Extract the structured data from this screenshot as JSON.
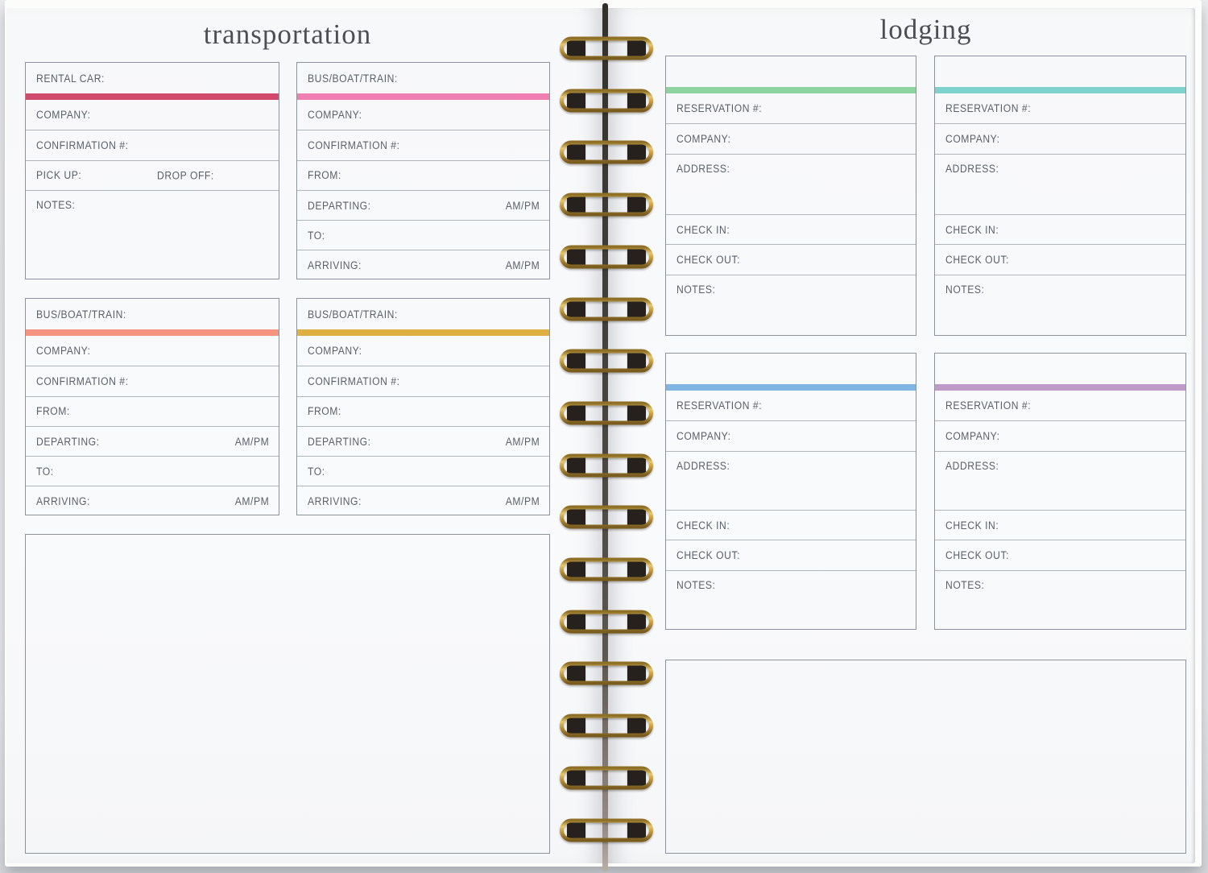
{
  "left_page": {
    "title": "transportation",
    "boxes": [
      {
        "header": "RENTAL CAR:",
        "bar_color": "#d14b6d",
        "rows": [
          {
            "label": "COMPANY:"
          },
          {
            "label": "CONFIRMATION #:"
          },
          {
            "label": "PICK UP:",
            "mid_label": "DROP OFF:"
          },
          {
            "label": "NOTES:",
            "tall": true
          }
        ]
      },
      {
        "header": "BUS/BOAT/TRAIN:",
        "bar_color": "#ef7fb1",
        "rows": [
          {
            "label": "COMPANY:"
          },
          {
            "label": "CONFIRMATION #:"
          },
          {
            "label": "FROM:"
          },
          {
            "label": "DEPARTING:",
            "right_label": "AM/PM"
          },
          {
            "label": "TO:"
          },
          {
            "label": "ARRIVING:",
            "right_label": "AM/PM"
          }
        ]
      },
      {
        "header": "BUS/BOAT/TRAIN:",
        "bar_color": "#f4947e",
        "rows": [
          {
            "label": "COMPANY:"
          },
          {
            "label": "CONFIRMATION #:"
          },
          {
            "label": "FROM:"
          },
          {
            "label": "DEPARTING:",
            "right_label": "AM/PM"
          },
          {
            "label": "TO:"
          },
          {
            "label": "ARRIVING:",
            "right_label": "AM/PM"
          }
        ]
      },
      {
        "header": "BUS/BOAT/TRAIN:",
        "bar_color": "#deb041",
        "rows": [
          {
            "label": "COMPANY:"
          },
          {
            "label": "CONFIRMATION #:"
          },
          {
            "label": "FROM:"
          },
          {
            "label": "DEPARTING:",
            "right_label": "AM/PM"
          },
          {
            "label": "TO:"
          },
          {
            "label": "ARRIVING:",
            "right_label": "AM/PM"
          }
        ]
      }
    ]
  },
  "right_page": {
    "title": "lodging",
    "boxes": [
      {
        "header": "",
        "bar_color": "#8fd2a1",
        "rows": [
          {
            "label": "RESERVATION #:"
          },
          {
            "label": "COMPANY:"
          },
          {
            "label": "ADDRESS:",
            "tall": true
          },
          {
            "label": "CHECK IN:"
          },
          {
            "label": "CHECK OUT:"
          },
          {
            "label": "NOTES:",
            "tall": true
          }
        ]
      },
      {
        "header": "",
        "bar_color": "#7fd1cc",
        "rows": [
          {
            "label": "RESERVATION #:"
          },
          {
            "label": "COMPANY:"
          },
          {
            "label": "ADDRESS:",
            "tall": true
          },
          {
            "label": "CHECK IN:"
          },
          {
            "label": "CHECK OUT:"
          },
          {
            "label": "NOTES:",
            "tall": true
          }
        ]
      },
      {
        "header": "",
        "bar_color": "#80b5e3",
        "rows": [
          {
            "label": "RESERVATION #:"
          },
          {
            "label": "COMPANY:"
          },
          {
            "label": "ADDRESS:",
            "tall": true
          },
          {
            "label": "CHECK IN:"
          },
          {
            "label": "CHECK OUT:"
          },
          {
            "label": "NOTES:",
            "tall": true
          }
        ]
      },
      {
        "header": "",
        "bar_color": "#c09ac6",
        "rows": [
          {
            "label": "RESERVATION #:"
          },
          {
            "label": "COMPANY:"
          },
          {
            "label": "ADDRESS:",
            "tall": true
          },
          {
            "label": "CHECK IN:"
          },
          {
            "label": "CHECK OUT:"
          },
          {
            "label": "NOTES:",
            "tall": true
          }
        ]
      }
    ]
  },
  "binding": {
    "ring_count": 16,
    "wire_color": "#c9a24b",
    "hole_color": "#26211c"
  }
}
